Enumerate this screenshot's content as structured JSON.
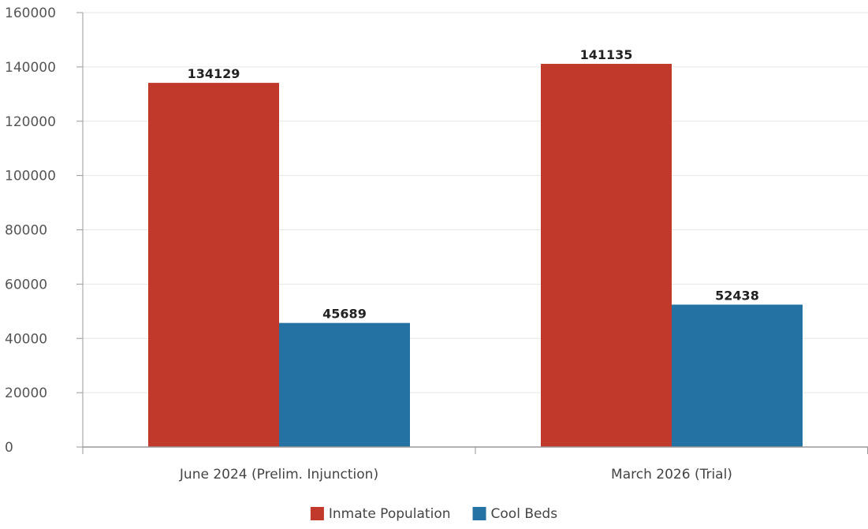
{
  "chart_data": {
    "type": "bar",
    "categories": [
      "June 2024 (Prelim. Injunction)",
      "March 2026 (Trial)"
    ],
    "series": [
      {
        "name": "Inmate Population",
        "values": [
          134129,
          141135
        ],
        "color": "#c0392b"
      },
      {
        "name": "Cool Beds",
        "values": [
          45689,
          52438
        ],
        "color": "#2471a3"
      }
    ],
    "title": "",
    "xlabel": "",
    "ylabel": "",
    "ylim": [
      0,
      160000
    ],
    "yticks": [
      0,
      20000,
      40000,
      60000,
      80000,
      100000,
      120000,
      140000,
      160000
    ],
    "grid": true,
    "legend": "bottom-center",
    "data_labels": true
  }
}
